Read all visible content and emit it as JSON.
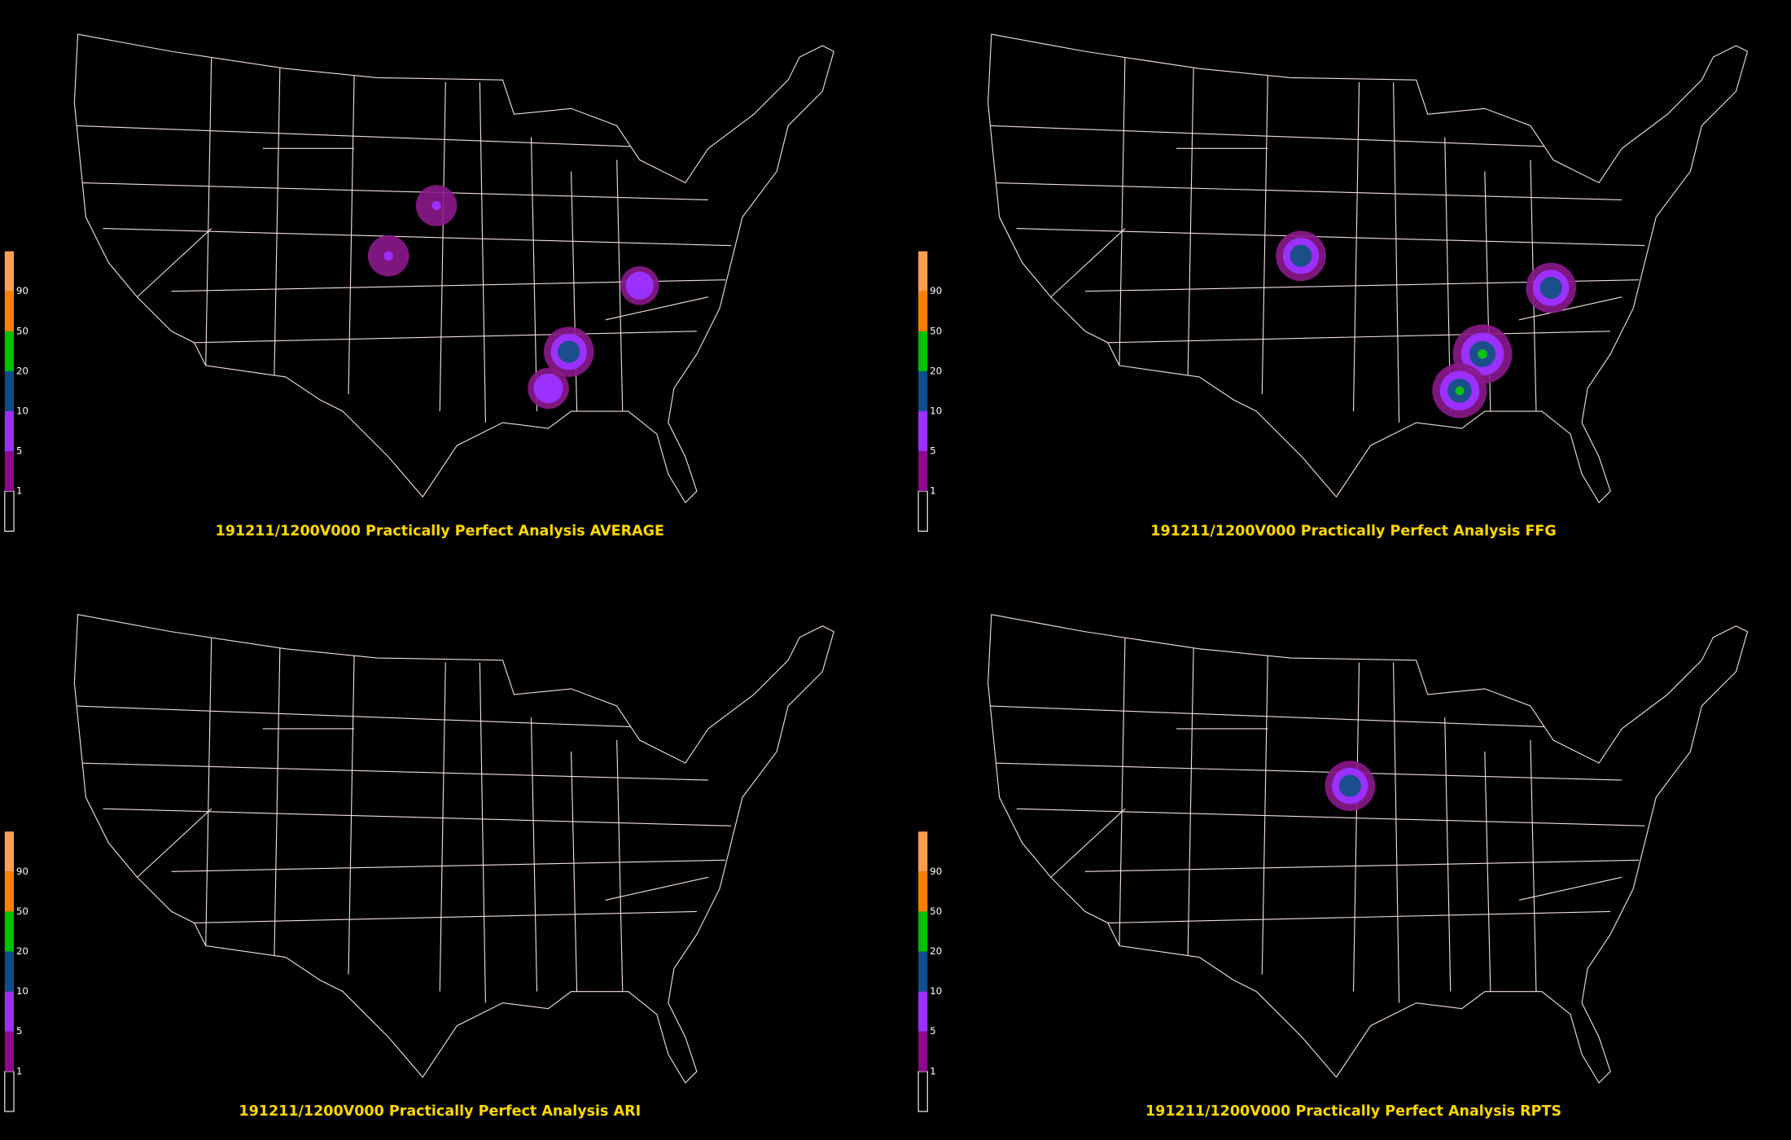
{
  "panels": [
    {
      "title": "191211/1200V000 Practically Perfect Analysis AVERAGE"
    },
    {
      "title": "191211/1200V000 Practically Perfect Analysis FFG"
    },
    {
      "title": "191211/1200V000 Practically Perfect Analysis ARI"
    },
    {
      "title": "191211/1200V000 Practically Perfect Analysis RPTS"
    }
  ],
  "colorbar": {
    "labels": [
      "1",
      "5",
      "10",
      "20",
      "50",
      "90"
    ]
  }
}
